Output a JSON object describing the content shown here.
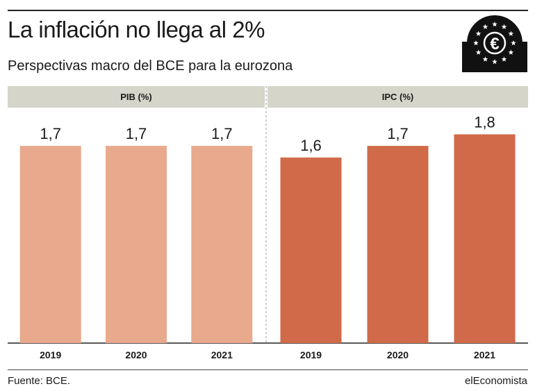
{
  "header": {
    "title": "La inflación no llega al 2%",
    "subtitle": "Perspectivas macro del BCE para la eurozona",
    "logo_icon": "euro-stars-icon"
  },
  "footer": {
    "source": "Fuente: BCE.",
    "brand": "elEconomista"
  },
  "colors": {
    "pib": "#e9a98c",
    "ipc": "#d06a48",
    "panel_header": "#d6d5ca"
  },
  "chart_data": [
    {
      "type": "bar",
      "title": "PIB (%)",
      "categories": [
        "2019",
        "2020",
        "2021"
      ],
      "values": [
        1.7,
        1.7,
        1.7
      ],
      "value_labels": [
        "1,7",
        "1,7",
        "1,7"
      ],
      "ylim": [
        0,
        2.0
      ],
      "grid": false
    },
    {
      "type": "bar",
      "title": "IPC (%)",
      "categories": [
        "2019",
        "2020",
        "2021"
      ],
      "values": [
        1.6,
        1.7,
        1.8
      ],
      "value_labels": [
        "1,6",
        "1,7",
        "1,8"
      ],
      "ylim": [
        0,
        2.0
      ],
      "grid": false
    }
  ]
}
